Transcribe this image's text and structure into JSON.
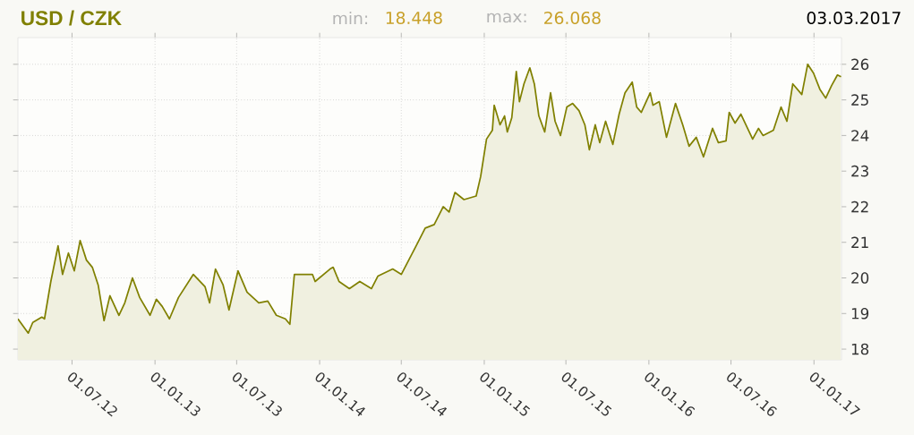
{
  "chart_data": {
    "type": "area",
    "title": "USD / CZK",
    "annotations": [
      "min:",
      "18.448",
      "max:",
      "26.068",
      "03.03.2017"
    ],
    "x": [
      "2012-03-03",
      "2012-03-26",
      "2012-04-05",
      "2012-04-25",
      "2012-05-01",
      "2012-05-15",
      "2012-05-31",
      "2012-06-10",
      "2012-06-23",
      "2012-07-06",
      "2012-07-19",
      "2012-08-02",
      "2012-08-15",
      "2012-08-28",
      "2012-09-10",
      "2012-09-23",
      "2012-10-13",
      "2012-10-26",
      "2012-11-12",
      "2012-11-28",
      "2012-12-21",
      "2013-01-04",
      "2013-01-17",
      "2013-02-02",
      "2013-02-22",
      "2013-03-27",
      "2013-04-22",
      "2013-05-02",
      "2013-05-15",
      "2013-06-01",
      "2013-06-14",
      "2013-07-04",
      "2013-07-24",
      "2013-08-19",
      "2013-09-08",
      "2013-09-27",
      "2013-10-17",
      "2013-10-27",
      "2013-11-06",
      "2013-12-16",
      "2013-12-22",
      "2014-01-24",
      "2014-01-31",
      "2014-02-13",
      "2014-03-08",
      "2014-03-31",
      "2014-04-26",
      "2014-05-10",
      "2014-06-12",
      "2014-07-01",
      "2014-08-03",
      "2014-08-23",
      "2014-09-12",
      "2014-10-02",
      "2014-10-15",
      "2014-10-28",
      "2014-11-17",
      "2014-12-14",
      "2014-12-24",
      "2015-01-06",
      "2015-01-19",
      "2015-01-23",
      "2015-02-05",
      "2015-02-15",
      "2015-02-21",
      "2015-03-03",
      "2015-03-13",
      "2015-03-20",
      "2015-03-30",
      "2015-04-12",
      "2015-04-22",
      "2015-05-02",
      "2015-05-15",
      "2015-05-28",
      "2015-06-07",
      "2015-06-19",
      "2015-07-03",
      "2015-07-16",
      "2015-07-30",
      "2015-08-12",
      "2015-08-22",
      "2015-09-04",
      "2015-09-14",
      "2015-09-27",
      "2015-10-13",
      "2015-10-27",
      "2015-11-09",
      "2015-11-25",
      "2015-12-05",
      "2015-12-15",
      "2016-01-04",
      "2016-01-10",
      "2016-01-24",
      "2016-02-09",
      "2016-02-29",
      "2016-03-16",
      "2016-03-30",
      "2016-04-15",
      "2016-05-01",
      "2016-05-21",
      "2016-06-03",
      "2016-06-20",
      "2016-06-27",
      "2016-07-10",
      "2016-07-23",
      "2016-08-18",
      "2016-08-31",
      "2016-09-10",
      "2016-10-03",
      "2016-10-20",
      "2016-11-02",
      "2016-11-15",
      "2016-12-05",
      "2016-12-18",
      "2016-12-31",
      "2017-01-14",
      "2017-01-27",
      "2017-02-09",
      "2017-02-22",
      "2017-03-02"
    ],
    "series": [
      {
        "color": "#808000",
        "values": [
          18.85,
          18.45,
          18.75,
          18.9,
          18.85,
          19.9,
          20.9,
          20.1,
          20.7,
          20.2,
          21.05,
          20.5,
          20.3,
          19.8,
          18.8,
          19.5,
          18.95,
          19.3,
          20.0,
          19.45,
          18.95,
          19.4,
          19.2,
          18.85,
          19.45,
          20.1,
          19.75,
          19.3,
          20.25,
          19.8,
          19.1,
          20.2,
          19.6,
          19.3,
          19.35,
          18.95,
          18.85,
          18.7,
          20.1,
          20.1,
          19.9,
          20.25,
          20.3,
          19.9,
          19.7,
          19.9,
          19.7,
          20.05,
          20.25,
          20.1,
          20.9,
          21.4,
          21.5,
          22.0,
          21.85,
          22.4,
          22.2,
          22.3,
          22.85,
          23.9,
          24.15,
          24.85,
          24.3,
          24.55,
          24.1,
          24.5,
          25.8,
          24.95,
          25.45,
          25.9,
          25.45,
          24.55,
          24.1,
          25.2,
          24.4,
          24.0,
          24.8,
          24.9,
          24.7,
          24.3,
          23.6,
          24.3,
          23.8,
          24.4,
          23.75,
          24.6,
          25.2,
          25.5,
          24.8,
          24.65,
          25.2,
          24.85,
          24.95,
          23.95,
          24.9,
          24.3,
          23.7,
          23.95,
          23.4,
          24.2,
          23.8,
          23.85,
          24.65,
          24.35,
          24.6,
          23.9,
          24.2,
          24.0,
          24.15,
          24.8,
          24.4,
          25.45,
          25.15,
          26.0,
          25.75,
          25.3,
          25.05,
          25.4,
          25.7,
          25.65
        ]
      }
    ],
    "xlim": [
      "2012-03-03",
      "2017-03-03"
    ],
    "xticks": [
      {
        "value": "2012-07-01",
        "label": "01.07.12"
      },
      {
        "value": "2013-01-01",
        "label": "01.01.13"
      },
      {
        "value": "2013-07-01",
        "label": "01.07.13"
      },
      {
        "value": "2014-01-01",
        "label": "01.01.14"
      },
      {
        "value": "2014-07-01",
        "label": "01.07.14"
      },
      {
        "value": "2015-01-01",
        "label": "01.01.15"
      },
      {
        "value": "2015-07-01",
        "label": "01.07.15"
      },
      {
        "value": "2016-01-01",
        "label": "01.01.16"
      },
      {
        "value": "2016-07-01",
        "label": "01.07.16"
      },
      {
        "value": "2017-01-01",
        "label": "01.01.17"
      }
    ],
    "ylim": [
      17.7,
      26.75
    ],
    "yticks": [
      18,
      19,
      20,
      21,
      22,
      23,
      24,
      25,
      26
    ],
    "grid": true,
    "line_style": "solid",
    "marker": "none"
  }
}
